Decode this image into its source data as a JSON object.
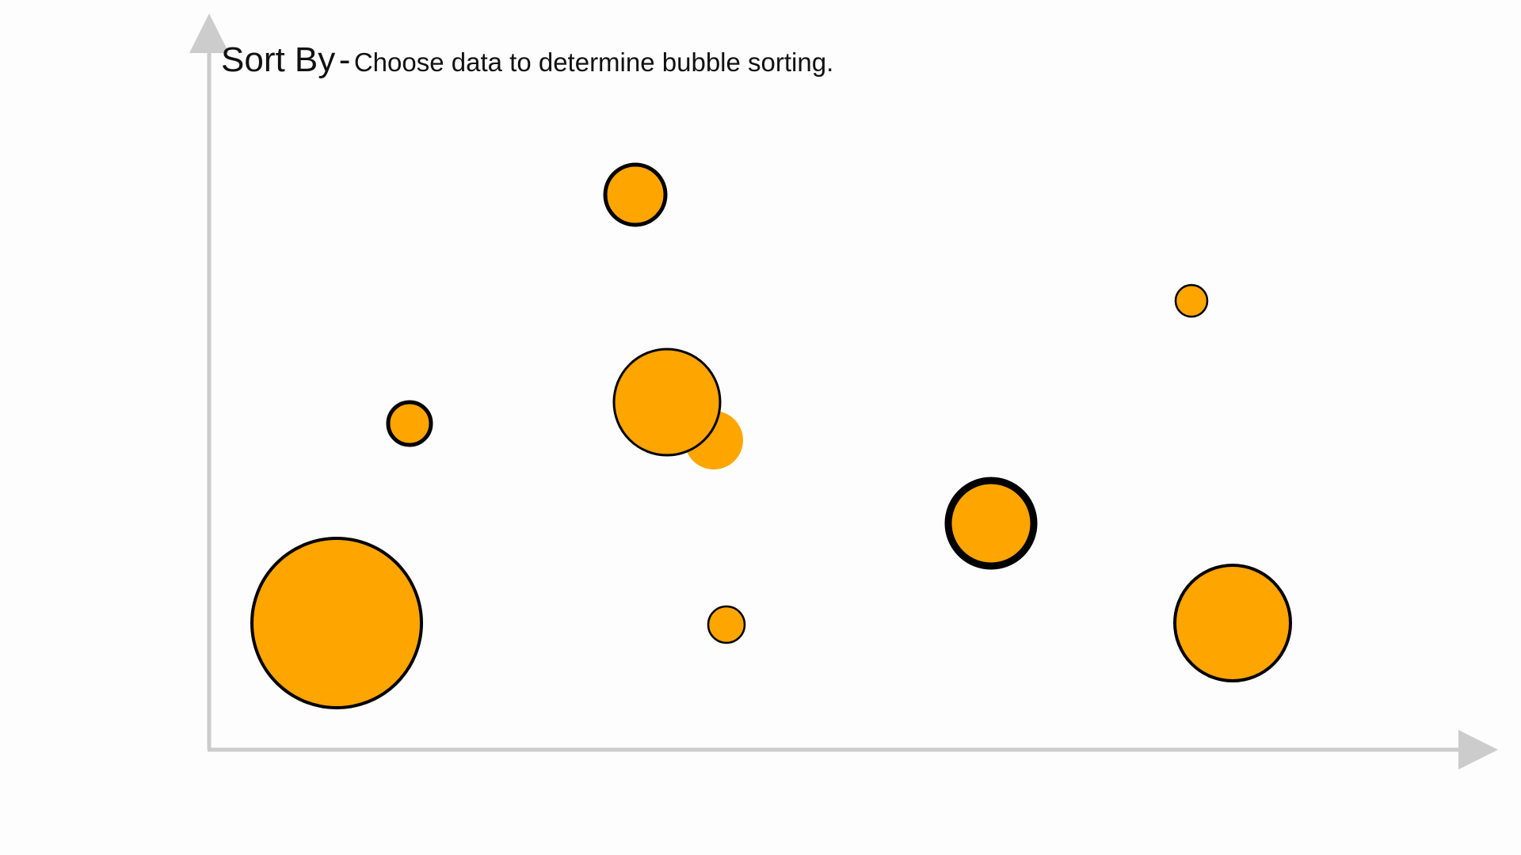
{
  "header": {
    "title": "Sort By",
    "separator": "-",
    "description": "Choose data to determine bubble sorting."
  }
}
